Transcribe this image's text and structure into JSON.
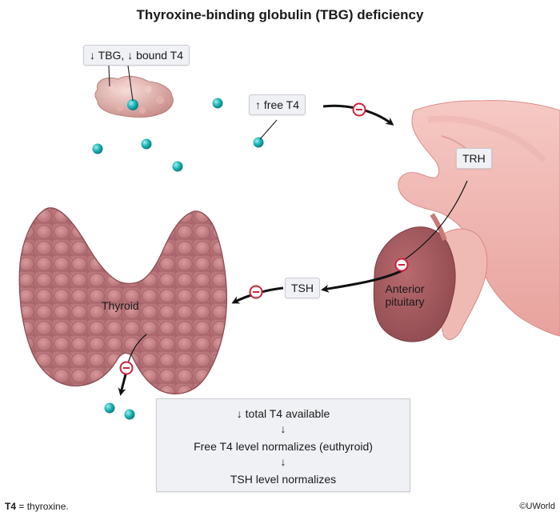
{
  "title": "Thyroxine-binding globulin (TBG) deficiency",
  "labels": {
    "tbg": "↓ TBG, ↓ bound T4",
    "free_t4": "↑ free T4",
    "trh": "TRH",
    "tsh": "TSH",
    "thyroid": "Thyroid",
    "anterior_pituitary": "Anterior pituitary"
  },
  "summary": {
    "line1": "↓ total T4 available",
    "arrow1": "↓",
    "line2": "Free T4 level normalizes (euthyroid)",
    "arrow2": "↓",
    "line3": "TSH level normalizes"
  },
  "footnote": {
    "abbr": "T4",
    "definition": " = thyroxine."
  },
  "copyright": "©UWorld",
  "colors": {
    "t4_molecule": "#1fb6b8",
    "tbg_protein": "#e2b2ad",
    "thyroid": "#c9868a",
    "pituitary": "#e9a7a3",
    "inhibition_marker": "#d0213a",
    "label_bg": "#f0f1f4"
  },
  "icons": {
    "inhibition": "minus-circle-icon",
    "molecule": "t4-molecule-icon"
  }
}
